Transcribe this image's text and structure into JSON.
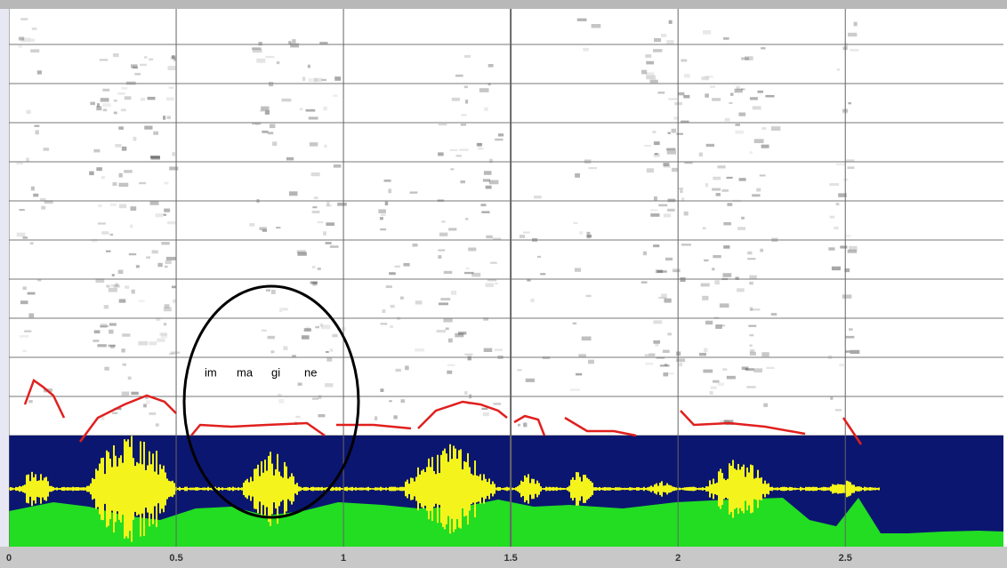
{
  "chart_data": {
    "type": "spectrogram",
    "xlim": [
      0,
      2.97
    ],
    "xticks": [
      0,
      0.5,
      1,
      1.5,
      2,
      2.5
    ],
    "annotations": [
      "im",
      "ma",
      "gi",
      "ne"
    ],
    "grid": true
  }
}
